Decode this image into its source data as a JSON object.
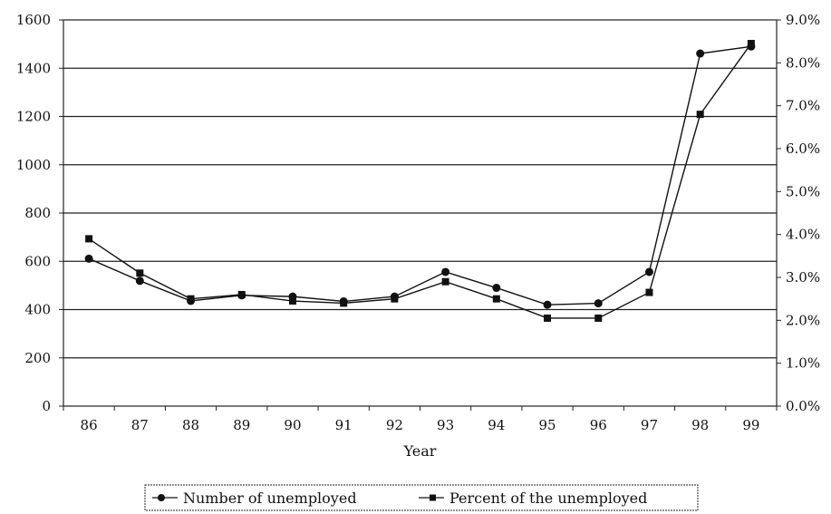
{
  "chart_data": {
    "type": "line",
    "categories": [
      "86",
      "87",
      "88",
      "89",
      "90",
      "91",
      "92",
      "93",
      "94",
      "95",
      "96",
      "97",
      "98",
      "99"
    ],
    "xlabel": "Year",
    "ylim_left": [
      0,
      1600
    ],
    "yticks_left": [
      "0",
      "200",
      "400",
      "600",
      "800",
      "1000",
      "1200",
      "1400",
      "1600"
    ],
    "ylim_right": [
      0,
      9
    ],
    "yticks_right": [
      "0.0%",
      "1.0%",
      "2.0%",
      "3.0%",
      "4.0%",
      "5.0%",
      "6.0%",
      "7.0%",
      "8.0%",
      "9.0%"
    ],
    "grid": "horizontal",
    "legend_position": "bottom",
    "series": [
      {
        "name": "Number of unemployed",
        "axis": "left",
        "marker": "circle",
        "values": [
          611,
          519,
          436,
          459,
          454,
          434,
          454,
          556,
          490,
          420,
          426,
          556,
          1461,
          1490
        ]
      },
      {
        "name": "Percent of the unemployed",
        "axis": "right",
        "marker": "square",
        "values": [
          3.9,
          3.1,
          2.5,
          2.6,
          2.45,
          2.4,
          2.5,
          2.9,
          2.5,
          2.05,
          2.05,
          2.65,
          6.8,
          8.45
        ]
      }
    ]
  }
}
